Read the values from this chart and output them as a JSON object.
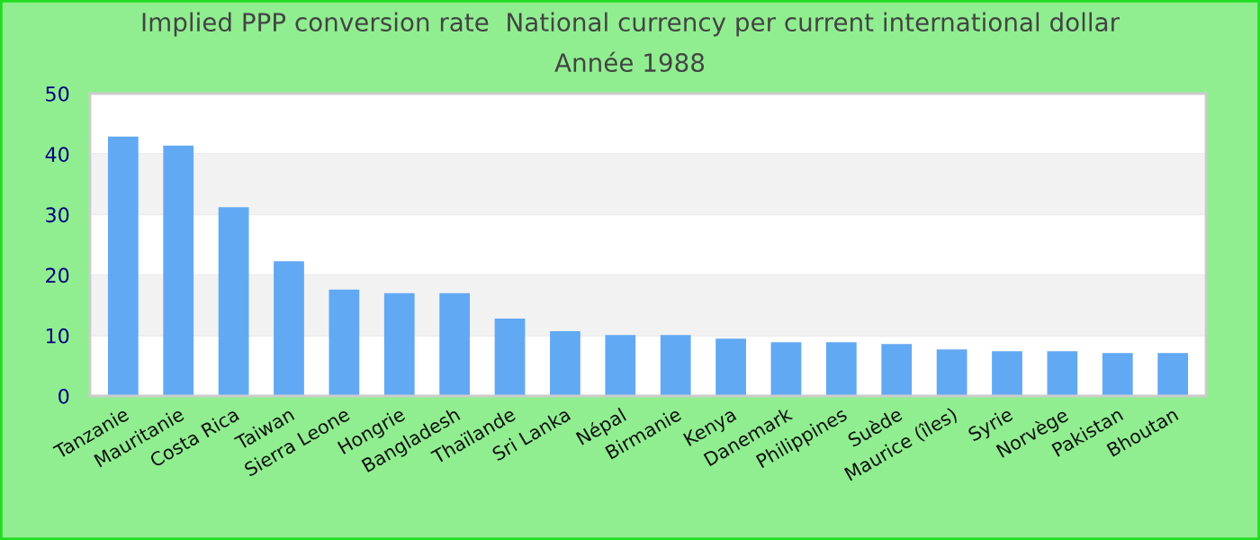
{
  "chart_data": {
    "type": "bar",
    "title": "Implied PPP conversion rate  National currency per current international dollar",
    "subtitle": "Année 1988",
    "categories": [
      "Tanzanie",
      "Mauritanie",
      "Costa Rica",
      "Taiwan",
      "Sierra Leone",
      "Hongrie",
      "Bangladesh",
      "Thaïlande",
      "Sri Lanka",
      "Népal",
      "Birmanie",
      "Kenya",
      "Danemark",
      "Philippines",
      "Suède",
      "Maurice (îles)",
      "Syrie",
      "Norvège",
      "Pakistan",
      "Bhoutan"
    ],
    "values": [
      42.9,
      41.4,
      31.2,
      22.3,
      17.6,
      17.0,
      17.0,
      12.8,
      10.7,
      10.1,
      10.1,
      9.5,
      8.9,
      8.9,
      8.6,
      7.7,
      7.4,
      7.4,
      7.1,
      7.1
    ],
    "color": "#62a9f4",
    "ylim": [
      0,
      50
    ],
    "yticks": [
      0,
      10,
      20,
      30,
      40,
      50
    ],
    "grid": "y"
  }
}
